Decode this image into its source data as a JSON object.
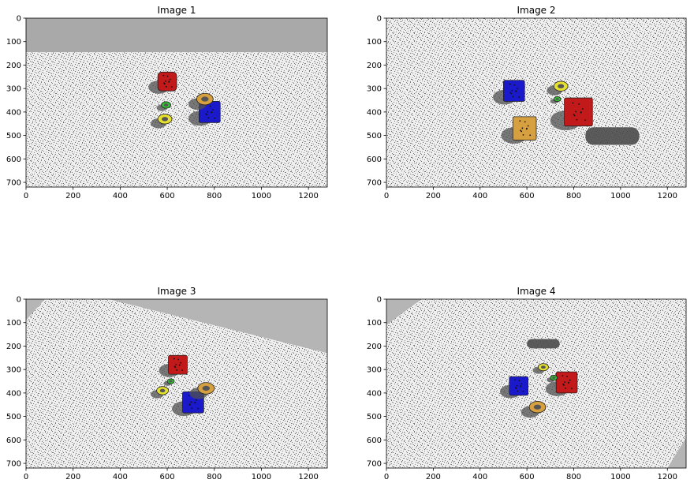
{
  "figure": {
    "panels": [
      {
        "title": "Image 1",
        "x_ticks": [
          0,
          200,
          400,
          600,
          800,
          1000,
          1200
        ],
        "y_ticks": [
          0,
          100,
          200,
          300,
          400,
          500,
          600,
          700
        ],
        "x_range": [
          0,
          1280
        ],
        "y_range": [
          0,
          720
        ],
        "sky_band": true,
        "objects": [
          {
            "color": "#c21a1a",
            "shape": "cylinder",
            "x": 600,
            "y": 270,
            "size": 40
          },
          {
            "color": "#1a1acc",
            "shape": "cube",
            "x": 780,
            "y": 400,
            "size": 45
          },
          {
            "color": "#d6a040",
            "shape": "ring",
            "x": 760,
            "y": 345,
            "size": 35
          },
          {
            "color": "#e6e030",
            "shape": "ring",
            "x": 590,
            "y": 430,
            "size": 30
          },
          {
            "color": "#30c030",
            "shape": "ring",
            "x": 595,
            "y": 370,
            "size": 20
          }
        ]
      },
      {
        "title": "Image 2",
        "x_ticks": [
          0,
          200,
          400,
          600,
          800,
          1000,
          1200
        ],
        "y_ticks": [
          0,
          100,
          200,
          300,
          400,
          500,
          600,
          700
        ],
        "x_range": [
          0,
          1280
        ],
        "y_range": [
          0,
          720
        ],
        "sky_band": false,
        "objects": [
          {
            "color": "#1a1acc",
            "shape": "cube",
            "x": 545,
            "y": 310,
            "size": 45
          },
          {
            "color": "#c21a1a",
            "shape": "cube",
            "x": 820,
            "y": 400,
            "size": 60
          },
          {
            "color": "#d6a040",
            "shape": "cube",
            "x": 590,
            "y": 470,
            "size": 50
          },
          {
            "color": "#e6e030",
            "shape": "ring",
            "x": 745,
            "y": 290,
            "size": 30
          },
          {
            "color": "#30c030",
            "shape": "ring",
            "x": 730,
            "y": 345,
            "size": 15
          }
        ]
      },
      {
        "title": "Image 3",
        "x_ticks": [
          0,
          200,
          400,
          600,
          800,
          1000,
          1200
        ],
        "y_ticks": [
          0,
          100,
          200,
          300,
          400,
          500,
          600,
          700
        ],
        "x_range": [
          0,
          1280
        ],
        "y_range": [
          0,
          720
        ],
        "sky_band": false,
        "objects": [
          {
            "color": "#c21a1a",
            "shape": "cube",
            "x": 645,
            "y": 280,
            "size": 40
          },
          {
            "color": "#1a1acc",
            "shape": "cube",
            "x": 710,
            "y": 440,
            "size": 45
          },
          {
            "color": "#d6a040",
            "shape": "ring",
            "x": 765,
            "y": 380,
            "size": 35
          },
          {
            "color": "#e6e030",
            "shape": "ring",
            "x": 580,
            "y": 390,
            "size": 25
          },
          {
            "color": "#30c030",
            "shape": "ring",
            "x": 615,
            "y": 350,
            "size": 15
          }
        ]
      },
      {
        "title": "Image 4",
        "x_ticks": [
          0,
          200,
          400,
          600,
          800,
          1000,
          1200
        ],
        "y_ticks": [
          0,
          100,
          200,
          300,
          400,
          500,
          600,
          700
        ],
        "x_range": [
          0,
          1280
        ],
        "y_range": [
          0,
          720
        ],
        "sky_band": false,
        "objects": [
          {
            "color": "#1a1acc",
            "shape": "cube",
            "x": 565,
            "y": 370,
            "size": 40
          },
          {
            "color": "#c21a1a",
            "shape": "cube",
            "x": 770,
            "y": 355,
            "size": 45
          },
          {
            "color": "#d6a040",
            "shape": "ring",
            "x": 645,
            "y": 460,
            "size": 35
          },
          {
            "color": "#e6e030",
            "shape": "ring",
            "x": 670,
            "y": 290,
            "size": 22
          },
          {
            "color": "#30c030",
            "shape": "ring",
            "x": 715,
            "y": 335,
            "size": 15
          }
        ]
      }
    ]
  }
}
